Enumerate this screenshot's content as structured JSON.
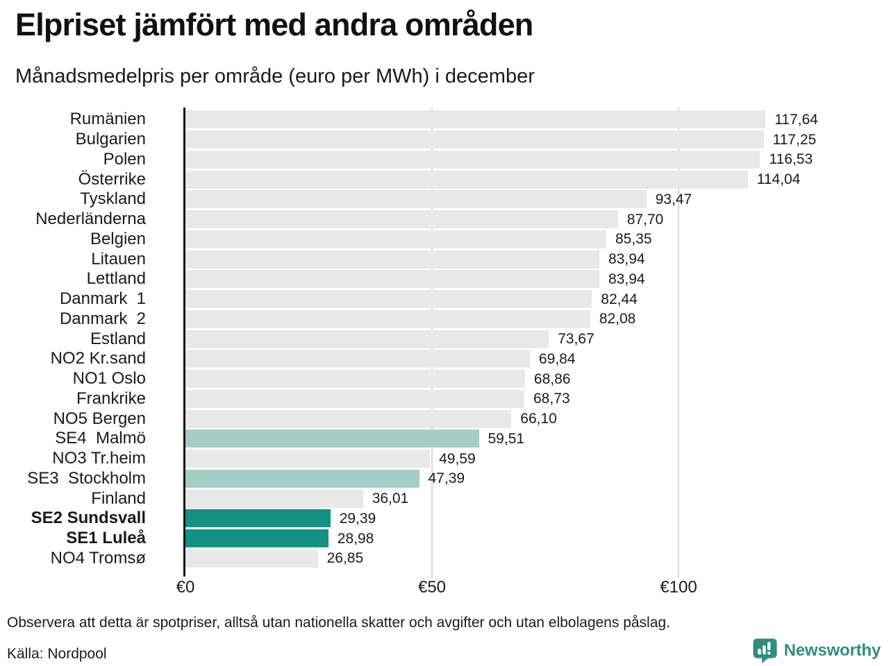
{
  "header": {
    "title": "Elpriset jämfört med andra områden",
    "subtitle": "Månadsmedelpris per område (euro per MWh) i december"
  },
  "chart_data": {
    "type": "bar",
    "orientation": "horizontal",
    "title": "Elpriset jämfört med andra områden",
    "subtitle": "Månadsmedelpris per område (euro per MWh) i december",
    "unit": "euro per MWh",
    "xlabel": "",
    "ylabel": "",
    "xlim": [
      0,
      142
    ],
    "grid": "vertical-light",
    "legend": "none",
    "categories": [
      "Rumänien",
      "Bulgarien",
      "Polen",
      "Österrike",
      "Tyskland",
      "Nederländerna",
      "Belgien",
      "Litauen",
      "Lettland",
      "Danmark  1",
      "Danmark  2",
      "Estland",
      "NO2 Kr.sand",
      "NO1 Oslo",
      "Frankrike",
      "NO5 Bergen",
      "SE4  Malmö",
      "NO3 Tr.heim",
      "SE3  Stockholm",
      "Finland",
      "SE2 Sundsvall",
      "SE1 Luleå",
      "NO4 Tromsø"
    ],
    "values": [
      117.64,
      117.25,
      116.53,
      114.04,
      93.47,
      87.7,
      85.35,
      83.94,
      83.94,
      82.44,
      82.08,
      73.67,
      69.84,
      68.86,
      68.73,
      66.1,
      59.51,
      49.59,
      47.39,
      36.01,
      29.39,
      28.98,
      26.85
    ],
    "value_labels": [
      "117,64",
      "117,25",
      "116,53",
      "114,04",
      "93,47",
      "87,70",
      "85,35",
      "83,94",
      "83,94",
      "82,44",
      "82,08",
      "73,67",
      "69,84",
      "68,86",
      "68,73",
      "66,10",
      "59,51",
      "49,59",
      "47,39",
      "36,01",
      "29,39",
      "28,98",
      "26,85"
    ],
    "rows": [
      {
        "label": "Rumänien",
        "value": 117.64,
        "display": "117,64",
        "style": "default",
        "bold": false
      },
      {
        "label": "Bulgarien",
        "value": 117.25,
        "display": "117,25",
        "style": "default",
        "bold": false
      },
      {
        "label": "Polen",
        "value": 116.53,
        "display": "116,53",
        "style": "default",
        "bold": false
      },
      {
        "label": "Österrike",
        "value": 114.04,
        "display": "114,04",
        "style": "default",
        "bold": false
      },
      {
        "label": "Tyskland",
        "value": 93.47,
        "display": "93,47",
        "style": "default",
        "bold": false
      },
      {
        "label": "Nederländerna",
        "value": 87.7,
        "display": "87,70",
        "style": "default",
        "bold": false
      },
      {
        "label": "Belgien",
        "value": 85.35,
        "display": "85,35",
        "style": "default",
        "bold": false
      },
      {
        "label": "Litauen",
        "value": 83.94,
        "display": "83,94",
        "style": "default",
        "bold": false
      },
      {
        "label": "Lettland",
        "value": 83.94,
        "display": "83,94",
        "style": "default",
        "bold": false
      },
      {
        "label": "Danmark  1",
        "value": 82.44,
        "display": "82,44",
        "style": "default",
        "bold": false
      },
      {
        "label": "Danmark  2",
        "value": 82.08,
        "display": "82,08",
        "style": "default",
        "bold": false
      },
      {
        "label": "Estland",
        "value": 73.67,
        "display": "73,67",
        "style": "default",
        "bold": false
      },
      {
        "label": "NO2 Kr.sand",
        "value": 69.84,
        "display": "69,84",
        "style": "default",
        "bold": false
      },
      {
        "label": "NO1 Oslo",
        "value": 68.86,
        "display": "68,86",
        "style": "default",
        "bold": false
      },
      {
        "label": "Frankrike",
        "value": 68.73,
        "display": "68,73",
        "style": "default",
        "bold": false
      },
      {
        "label": "NO5 Bergen",
        "value": 66.1,
        "display": "66,10",
        "style": "default",
        "bold": false
      },
      {
        "label": "SE4  Malmö",
        "value": 59.51,
        "display": "59,51",
        "style": "light",
        "bold": false
      },
      {
        "label": "NO3 Tr.heim",
        "value": 49.59,
        "display": "49,59",
        "style": "default",
        "bold": false
      },
      {
        "label": "SE3  Stockholm",
        "value": 47.39,
        "display": "47,39",
        "style": "light",
        "bold": false
      },
      {
        "label": "Finland",
        "value": 36.01,
        "display": "36,01",
        "style": "default",
        "bold": false
      },
      {
        "label": "SE2 Sundsvall",
        "value": 29.39,
        "display": "29,39",
        "style": "dark",
        "bold": true
      },
      {
        "label": "SE1 Luleå",
        "value": 28.98,
        "display": "28,98",
        "style": "dark",
        "bold": true
      },
      {
        "label": "NO4 Tromsø",
        "value": 26.85,
        "display": "26,85",
        "style": "default",
        "bold": false
      }
    ],
    "x_axis": {
      "ticks": [
        {
          "label": "€0",
          "value": 0
        },
        {
          "label": "€50",
          "value": 50
        },
        {
          "label": "€100",
          "value": 100
        }
      ]
    }
  },
  "footer": {
    "note": "Observera att detta är spotpriser, alltså utan nationella skatter och avgifter och utan elbolagens påslag.",
    "source": "Källa: Nordpool",
    "brand": "Newsworthy"
  },
  "colors": {
    "bar_default": "#e8e8e8",
    "bar_light": "#a5cdc5",
    "bar_dark": "#159184",
    "gridline": "#d9d9d9",
    "axis": "#111111",
    "text": "#1a1a1a",
    "brand_teal": "#2f8d82"
  }
}
